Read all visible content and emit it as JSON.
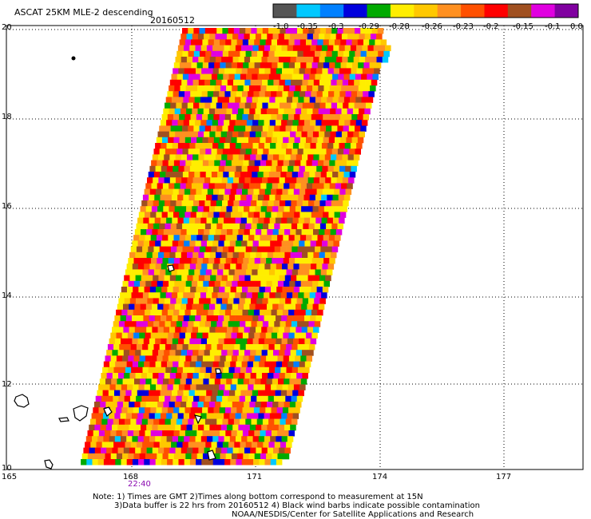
{
  "header": {
    "title": "ASCAT 25KM MLE-2 descending",
    "date": "20160512"
  },
  "colorbar": {
    "colors": [
      "#555555",
      "#00c8ff",
      "#0080ff",
      "#0000dd",
      "#00aa00",
      "#ffee00",
      "#ffc800",
      "#ff9020",
      "#ff5000",
      "#ff0000",
      "#a05020",
      "#e000e0",
      "#8000a0"
    ],
    "labels": [
      "-1.0",
      "-0.35",
      "-0.3",
      "-0.29",
      "-0.28",
      "-0.26",
      "-0.23",
      "-0.2",
      "-0.15",
      "-0.1",
      "0.0"
    ]
  },
  "axes": {
    "lat_labels": [
      "20",
      "18",
      "16",
      "14",
      "12",
      "10"
    ],
    "lon_labels": [
      "165",
      "168",
      "171",
      "174",
      "177"
    ]
  },
  "swath": {
    "palette": [
      "#ffee00",
      "#ffc800",
      "#ff9020",
      "#ff5000",
      "#ff0000",
      "#a05020",
      "#e000e0",
      "#00aa00",
      "#0000dd",
      "#00c8ff",
      "#0080ff"
    ]
  },
  "overpass_time": "22:40",
  "notes": [
    "Note: 1) Times are GMT 2)Times along bottom correspond to measurement at 15N",
    "3)Data buffer is 22 hrs from 20160512 4) Black wind barbs indicate possible contamination",
    "NOAA/NESDIS/Center for Satellite Applications and Research"
  ]
}
